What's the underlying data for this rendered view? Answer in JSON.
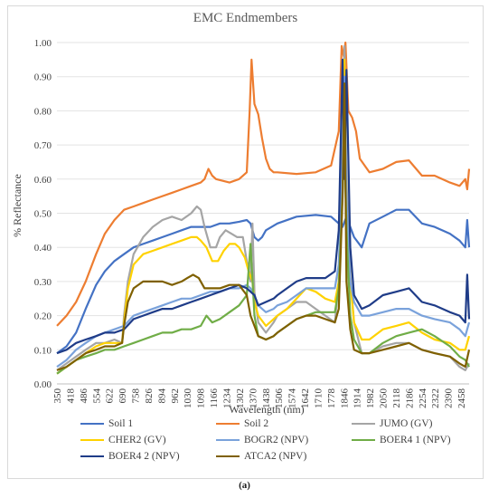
{
  "chart_data": {
    "type": "line",
    "title": "EMC Endmembers",
    "xlabel": "Wavelength (nm)",
    "ylabel": "% Reflectance",
    "ylim": [
      0,
      1
    ],
    "yticks": [
      "0.00",
      "0.10",
      "0.20",
      "0.30",
      "0.40",
      "0.50",
      "0.60",
      "0.70",
      "0.80",
      "0.90",
      "1.00"
    ],
    "xticks": [
      "350",
      "418",
      "486",
      "554",
      "622",
      "690",
      "758",
      "826",
      "894",
      "962",
      "1030",
      "1098",
      "1166",
      "1234",
      "1302",
      "1370",
      "1438",
      "1506",
      "1574",
      "1642",
      "1710",
      "1778",
      "1846",
      "1914",
      "1982",
      "2050",
      "2118",
      "2186",
      "2254",
      "2322",
      "2390",
      "2458"
    ],
    "xlim": [
      350,
      2500
    ],
    "grid": true,
    "legend_position": "bottom",
    "caption": "(a)",
    "series": [
      {
        "name": "Soil 1",
        "color": "#4472c4",
        "x": [
          350,
          400,
          450,
          500,
          554,
          600,
          650,
          700,
          750,
          800,
          850,
          900,
          950,
          1000,
          1050,
          1100,
          1150,
          1200,
          1250,
          1300,
          1340,
          1360,
          1380,
          1400,
          1420,
          1440,
          1500,
          1600,
          1700,
          1780,
          1820,
          1840,
          1860,
          1880,
          1900,
          1940,
          1980,
          2050,
          2120,
          2186,
          2254,
          2320,
          2400,
          2450,
          2480,
          2490,
          2500
        ],
        "y": [
          0.09,
          0.11,
          0.15,
          0.22,
          0.29,
          0.33,
          0.36,
          0.38,
          0.4,
          0.41,
          0.42,
          0.43,
          0.44,
          0.45,
          0.46,
          0.46,
          0.46,
          0.47,
          0.47,
          0.475,
          0.48,
          0.47,
          0.43,
          0.42,
          0.43,
          0.45,
          0.47,
          0.49,
          0.495,
          0.49,
          0.47,
          0.46,
          0.49,
          0.46,
          0.43,
          0.4,
          0.47,
          0.49,
          0.51,
          0.51,
          0.47,
          0.46,
          0.44,
          0.42,
          0.4,
          0.48,
          0.4
        ]
      },
      {
        "name": "Soil 2",
        "color": "#ed7d31",
        "x": [
          350,
          400,
          450,
          500,
          554,
          600,
          650,
          700,
          750,
          800,
          850,
          900,
          950,
          1000,
          1050,
          1100,
          1120,
          1140,
          1160,
          1180,
          1250,
          1300,
          1340,
          1355,
          1365,
          1380,
          1400,
          1420,
          1440,
          1460,
          1480,
          1500,
          1600,
          1700,
          1780,
          1820,
          1835,
          1846,
          1855,
          1870,
          1890,
          1910,
          1930,
          1980,
          2050,
          2120,
          2186,
          2254,
          2320,
          2400,
          2450,
          2480,
          2490,
          2500
        ],
        "y": [
          0.17,
          0.2,
          0.24,
          0.3,
          0.38,
          0.44,
          0.48,
          0.51,
          0.52,
          0.53,
          0.54,
          0.55,
          0.56,
          0.57,
          0.58,
          0.59,
          0.6,
          0.63,
          0.61,
          0.6,
          0.59,
          0.6,
          0.62,
          0.8,
          0.95,
          0.82,
          0.79,
          0.72,
          0.66,
          0.63,
          0.62,
          0.62,
          0.615,
          0.62,
          0.64,
          0.74,
          0.99,
          0.96,
          1.0,
          0.8,
          0.78,
          0.74,
          0.66,
          0.62,
          0.63,
          0.65,
          0.655,
          0.61,
          0.61,
          0.59,
          0.58,
          0.6,
          0.57,
          0.63
        ]
      },
      {
        "name": "JUMO (GV)",
        "color": "#a5a5a5",
        "x": [
          350,
          400,
          450,
          500,
          554,
          600,
          650,
          690,
          700,
          720,
          750,
          800,
          850,
          900,
          950,
          1000,
          1050,
          1080,
          1100,
          1120,
          1150,
          1180,
          1200,
          1230,
          1260,
          1290,
          1320,
          1340,
          1360,
          1370,
          1380,
          1400,
          1440,
          1480,
          1500,
          1550,
          1600,
          1650,
          1700,
          1750,
          1800,
          1820,
          1840,
          1850,
          1860,
          1880,
          1900,
          1940,
          1980,
          2050,
          2120,
          2186,
          2254,
          2320,
          2400,
          2450,
          2480,
          2500
        ],
        "y": [
          0.04,
          0.06,
          0.08,
          0.1,
          0.12,
          0.12,
          0.13,
          0.12,
          0.2,
          0.3,
          0.38,
          0.43,
          0.46,
          0.48,
          0.49,
          0.48,
          0.5,
          0.52,
          0.51,
          0.46,
          0.4,
          0.4,
          0.43,
          0.45,
          0.44,
          0.43,
          0.43,
          0.36,
          0.3,
          0.47,
          0.27,
          0.18,
          0.15,
          0.18,
          0.2,
          0.22,
          0.24,
          0.24,
          0.22,
          0.2,
          0.18,
          0.3,
          0.82,
          0.99,
          0.6,
          0.32,
          0.18,
          0.09,
          0.09,
          0.11,
          0.12,
          0.12,
          0.1,
          0.09,
          0.08,
          0.05,
          0.04,
          0.06
        ]
      },
      {
        "name": "CHER2 (GV)",
        "color": "#ffd200",
        "x": [
          350,
          400,
          450,
          500,
          554,
          600,
          650,
          690,
          700,
          720,
          750,
          800,
          850,
          900,
          950,
          1000,
          1050,
          1080,
          1100,
          1130,
          1160,
          1190,
          1220,
          1250,
          1280,
          1300,
          1330,
          1350,
          1370,
          1380,
          1400,
          1440,
          1480,
          1500,
          1550,
          1600,
          1650,
          1700,
          1750,
          1800,
          1820,
          1840,
          1850,
          1860,
          1880,
          1900,
          1940,
          1980,
          2050,
          2120,
          2186,
          2254,
          2320,
          2400,
          2450,
          2480,
          2500
        ],
        "y": [
          0.03,
          0.05,
          0.07,
          0.09,
          0.11,
          0.12,
          0.12,
          0.12,
          0.18,
          0.28,
          0.35,
          0.38,
          0.39,
          0.4,
          0.41,
          0.42,
          0.43,
          0.43,
          0.42,
          0.4,
          0.36,
          0.36,
          0.39,
          0.41,
          0.41,
          0.4,
          0.37,
          0.33,
          0.3,
          0.24,
          0.2,
          0.17,
          0.19,
          0.2,
          0.22,
          0.25,
          0.28,
          0.27,
          0.25,
          0.24,
          0.3,
          0.6,
          0.95,
          0.55,
          0.3,
          0.18,
          0.13,
          0.13,
          0.16,
          0.17,
          0.18,
          0.15,
          0.13,
          0.12,
          0.1,
          0.1,
          0.14
        ]
      },
      {
        "name": "BOGR2 (NPV)",
        "color": "#7aa2db",
        "x": [
          350,
          400,
          450,
          500,
          554,
          600,
          650,
          700,
          750,
          800,
          850,
          900,
          950,
          1000,
          1050,
          1100,
          1150,
          1200,
          1250,
          1300,
          1340,
          1360,
          1380,
          1400,
          1440,
          1480,
          1500,
          1550,
          1600,
          1650,
          1700,
          1750,
          1800,
          1820,
          1840,
          1850,
          1860,
          1880,
          1900,
          1940,
          1980,
          2050,
          2120,
          2186,
          2254,
          2320,
          2400,
          2450,
          2480,
          2500
        ],
        "y": [
          0.05,
          0.07,
          0.1,
          0.12,
          0.14,
          0.15,
          0.16,
          0.17,
          0.2,
          0.21,
          0.22,
          0.23,
          0.24,
          0.25,
          0.25,
          0.26,
          0.27,
          0.27,
          0.28,
          0.28,
          0.29,
          0.28,
          0.26,
          0.23,
          0.21,
          0.22,
          0.23,
          0.24,
          0.26,
          0.28,
          0.28,
          0.28,
          0.28,
          0.35,
          0.66,
          0.9,
          0.55,
          0.3,
          0.24,
          0.2,
          0.2,
          0.21,
          0.22,
          0.22,
          0.2,
          0.19,
          0.18,
          0.16,
          0.14,
          0.18
        ]
      },
      {
        "name": "BOER4 1 (NPV)",
        "color": "#70ad47",
        "x": [
          350,
          400,
          450,
          500,
          554,
          600,
          650,
          700,
          750,
          800,
          850,
          900,
          950,
          1000,
          1050,
          1100,
          1130,
          1160,
          1200,
          1250,
          1300,
          1340,
          1360,
          1380,
          1400,
          1440,
          1480,
          1500,
          1550,
          1600,
          1650,
          1700,
          1750,
          1800,
          1820,
          1840,
          1850,
          1860,
          1880,
          1900,
          1940,
          1980,
          2050,
          2120,
          2186,
          2254,
          2320,
          2400,
          2450,
          2480,
          2500
        ],
        "y": [
          0.03,
          0.05,
          0.07,
          0.08,
          0.09,
          0.1,
          0.1,
          0.11,
          0.12,
          0.13,
          0.14,
          0.15,
          0.15,
          0.16,
          0.16,
          0.17,
          0.2,
          0.18,
          0.19,
          0.21,
          0.23,
          0.26,
          0.41,
          0.2,
          0.14,
          0.13,
          0.14,
          0.15,
          0.17,
          0.19,
          0.2,
          0.21,
          0.21,
          0.21,
          0.28,
          0.56,
          0.72,
          0.45,
          0.2,
          0.13,
          0.09,
          0.09,
          0.12,
          0.14,
          0.15,
          0.16,
          0.14,
          0.11,
          0.08,
          0.07,
          0.05
        ]
      },
      {
        "name": "BOER4 2 (NPV)",
        "color": "#1f3c88",
        "x": [
          350,
          400,
          450,
          500,
          554,
          600,
          650,
          700,
          750,
          800,
          850,
          900,
          950,
          1000,
          1050,
          1100,
          1150,
          1200,
          1250,
          1300,
          1340,
          1360,
          1380,
          1400,
          1440,
          1480,
          1500,
          1550,
          1600,
          1650,
          1700,
          1750,
          1800,
          1820,
          1840,
          1850,
          1860,
          1880,
          1900,
          1940,
          1980,
          2050,
          2120,
          2186,
          2254,
          2320,
          2400,
          2450,
          2480,
          2490,
          2500
        ],
        "y": [
          0.09,
          0.1,
          0.12,
          0.13,
          0.14,
          0.15,
          0.15,
          0.16,
          0.19,
          0.2,
          0.21,
          0.22,
          0.22,
          0.23,
          0.24,
          0.25,
          0.26,
          0.27,
          0.28,
          0.29,
          0.28,
          0.27,
          0.26,
          0.23,
          0.24,
          0.25,
          0.26,
          0.28,
          0.3,
          0.31,
          0.31,
          0.31,
          0.33,
          0.45,
          0.95,
          0.6,
          0.92,
          0.4,
          0.26,
          0.22,
          0.23,
          0.26,
          0.27,
          0.28,
          0.24,
          0.23,
          0.21,
          0.2,
          0.18,
          0.32,
          0.19
        ]
      },
      {
        "name": "ATCA2 (NPV)",
        "color": "#7f6000",
        "x": [
          350,
          400,
          450,
          500,
          554,
          600,
          650,
          690,
          700,
          720,
          750,
          800,
          850,
          900,
          950,
          1000,
          1030,
          1060,
          1090,
          1120,
          1160,
          1200,
          1250,
          1300,
          1340,
          1360,
          1380,
          1400,
          1440,
          1480,
          1500,
          1550,
          1600,
          1650,
          1700,
          1750,
          1800,
          1820,
          1840,
          1850,
          1860,
          1880,
          1900,
          1940,
          1980,
          2050,
          2120,
          2186,
          2254,
          2320,
          2400,
          2450,
          2480,
          2500
        ],
        "y": [
          0.04,
          0.05,
          0.07,
          0.09,
          0.1,
          0.11,
          0.11,
          0.12,
          0.17,
          0.24,
          0.28,
          0.3,
          0.3,
          0.3,
          0.29,
          0.3,
          0.31,
          0.32,
          0.31,
          0.28,
          0.28,
          0.28,
          0.29,
          0.29,
          0.26,
          0.2,
          0.17,
          0.14,
          0.13,
          0.14,
          0.15,
          0.17,
          0.19,
          0.2,
          0.2,
          0.19,
          0.18,
          0.22,
          0.55,
          0.88,
          0.3,
          0.16,
          0.1,
          0.09,
          0.09,
          0.1,
          0.11,
          0.12,
          0.1,
          0.09,
          0.08,
          0.06,
          0.05,
          0.1
        ]
      }
    ]
  }
}
